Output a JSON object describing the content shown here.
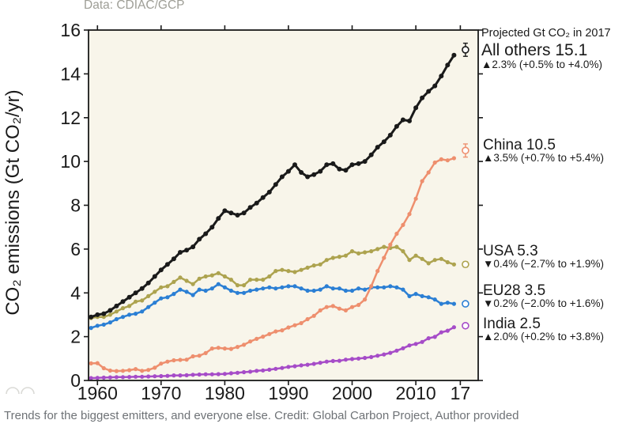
{
  "figure": {
    "data_note": "Data: CDIAC/GCP",
    "y_axis_label": "CO₂ emissions (Gt CO₂/yr)",
    "annotation_header": "Projected Gt CO₂ in 2017",
    "caption": "Trends for the biggest emitters, and everyone else. Credit: Global Carbon Project, Author provided"
  },
  "chart_data": {
    "type": "line",
    "title": "",
    "xlabel": "",
    "ylabel": "CO₂ emissions (Gt CO₂/yr)",
    "grid": false,
    "legend_position": "right-annotations",
    "xlim": [
      1958.6,
      2019.8
    ],
    "ylim": [
      0,
      16
    ],
    "year_start": 1959,
    "projection_year": 2017,
    "x_ticks": [
      {
        "year": 1960,
        "label": "1960"
      },
      {
        "year": 1970,
        "label": "1970"
      },
      {
        "year": 1980,
        "label": "1980"
      },
      {
        "year": 1990,
        "label": "1990"
      },
      {
        "year": 2000,
        "label": "2000"
      },
      {
        "year": 2010,
        "label": "2010"
      },
      {
        "year": 2017,
        "label": "17"
      }
    ],
    "y_ticks": [
      0,
      2,
      4,
      6,
      8,
      10,
      12,
      14,
      16
    ],
    "plot_bg_color": "#f8f5ea",
    "series": [
      {
        "name": "All others",
        "color": "#1a1a1a",
        "label": "All others 15.1",
        "change": "▲2.3% (+0.5% to +4.0%)",
        "projection_2017": 15.1,
        "proj_err": 0.3,
        "values": [
          2.9,
          3.0,
          3.05,
          3.2,
          3.4,
          3.6,
          3.8,
          4.0,
          4.2,
          4.45,
          4.75,
          5.05,
          5.3,
          5.55,
          5.85,
          5.95,
          6.1,
          6.45,
          6.7,
          7.0,
          7.4,
          7.75,
          7.65,
          7.55,
          7.65,
          7.9,
          8.1,
          8.35,
          8.6,
          8.95,
          9.3,
          9.55,
          9.85,
          9.5,
          9.3,
          9.4,
          9.55,
          9.85,
          9.9,
          9.65,
          9.6,
          9.85,
          9.9,
          10.0,
          10.3,
          10.65,
          10.9,
          11.2,
          11.6,
          11.9,
          11.85,
          12.45,
          12.9,
          13.2,
          13.45,
          13.9,
          14.4,
          14.85
        ]
      },
      {
        "name": "China",
        "color": "#ee8f6e",
        "label": "China 10.5",
        "change": "▲3.5% (+0.7% to +5.4%)",
        "projection_2017": 10.5,
        "proj_err": 0.3,
        "values": [
          0.78,
          0.79,
          0.56,
          0.45,
          0.43,
          0.44,
          0.47,
          0.52,
          0.44,
          0.48,
          0.58,
          0.77,
          0.86,
          0.92,
          0.94,
          0.95,
          1.1,
          1.13,
          1.25,
          1.46,
          1.49,
          1.46,
          1.44,
          1.53,
          1.63,
          1.78,
          1.9,
          2.0,
          2.12,
          2.24,
          2.29,
          2.42,
          2.52,
          2.62,
          2.8,
          2.95,
          3.2,
          3.35,
          3.4,
          3.28,
          3.2,
          3.35,
          3.45,
          3.7,
          4.3,
          5.0,
          5.6,
          6.2,
          6.7,
          7.1,
          7.6,
          8.3,
          9.1,
          9.5,
          9.95,
          10.1,
          10.05,
          10.15
        ]
      },
      {
        "name": "USA",
        "color": "#ada34f",
        "label": "USA 5.3",
        "change": "▼0.4% (−2.7% to +1.9%)",
        "projection_2017": 5.3,
        "proj_err": 0.12,
        "values": [
          2.85,
          2.9,
          2.9,
          3.0,
          3.15,
          3.3,
          3.4,
          3.6,
          3.65,
          3.85,
          4.05,
          4.25,
          4.3,
          4.5,
          4.7,
          4.55,
          4.4,
          4.65,
          4.75,
          4.8,
          4.9,
          4.75,
          4.6,
          4.35,
          4.35,
          4.6,
          4.6,
          4.6,
          4.75,
          5.0,
          5.05,
          5.0,
          4.95,
          5.05,
          5.15,
          5.25,
          5.3,
          5.5,
          5.6,
          5.65,
          5.7,
          5.9,
          5.8,
          5.85,
          5.9,
          6.0,
          6.1,
          6.05,
          6.1,
          5.9,
          5.5,
          5.7,
          5.55,
          5.35,
          5.5,
          5.55,
          5.4,
          5.3
        ]
      },
      {
        "name": "EU28",
        "color": "#2b7fd4",
        "label": "EU28 3.5",
        "change": "▼0.2% (−2.0% to +1.6%)",
        "projection_2017": 3.5,
        "proj_err": 0.1,
        "values": [
          2.4,
          2.5,
          2.55,
          2.65,
          2.8,
          2.9,
          3.0,
          3.05,
          3.15,
          3.35,
          3.55,
          3.75,
          3.8,
          3.95,
          4.15,
          4.05,
          3.9,
          4.15,
          4.1,
          4.2,
          4.4,
          4.25,
          4.1,
          4.0,
          4.0,
          4.1,
          4.15,
          4.2,
          4.25,
          4.2,
          4.25,
          4.3,
          4.3,
          4.2,
          4.1,
          4.1,
          4.15,
          4.3,
          4.2,
          4.2,
          4.1,
          4.1,
          4.2,
          4.15,
          4.25,
          4.25,
          4.25,
          4.3,
          4.25,
          4.15,
          3.85,
          3.95,
          3.85,
          3.8,
          3.7,
          3.5,
          3.55,
          3.5
        ]
      },
      {
        "name": "India",
        "color": "#a64cc8",
        "label": "India 2.5",
        "change": "▲2.0% (+0.2% to +3.8%)",
        "projection_2017": 2.5,
        "proj_err": 0.08,
        "values": [
          0.11,
          0.12,
          0.13,
          0.14,
          0.15,
          0.15,
          0.16,
          0.17,
          0.17,
          0.18,
          0.19,
          0.2,
          0.21,
          0.23,
          0.23,
          0.24,
          0.26,
          0.27,
          0.28,
          0.28,
          0.29,
          0.3,
          0.33,
          0.35,
          0.38,
          0.4,
          0.44,
          0.46,
          0.49,
          0.53,
          0.57,
          0.62,
          0.65,
          0.69,
          0.72,
          0.76,
          0.81,
          0.86,
          0.89,
          0.9,
          0.95,
          0.98,
          1.0,
          1.03,
          1.07,
          1.13,
          1.19,
          1.26,
          1.36,
          1.47,
          1.6,
          1.67,
          1.76,
          1.93,
          1.99,
          2.2,
          2.27,
          2.43
        ]
      }
    ]
  }
}
